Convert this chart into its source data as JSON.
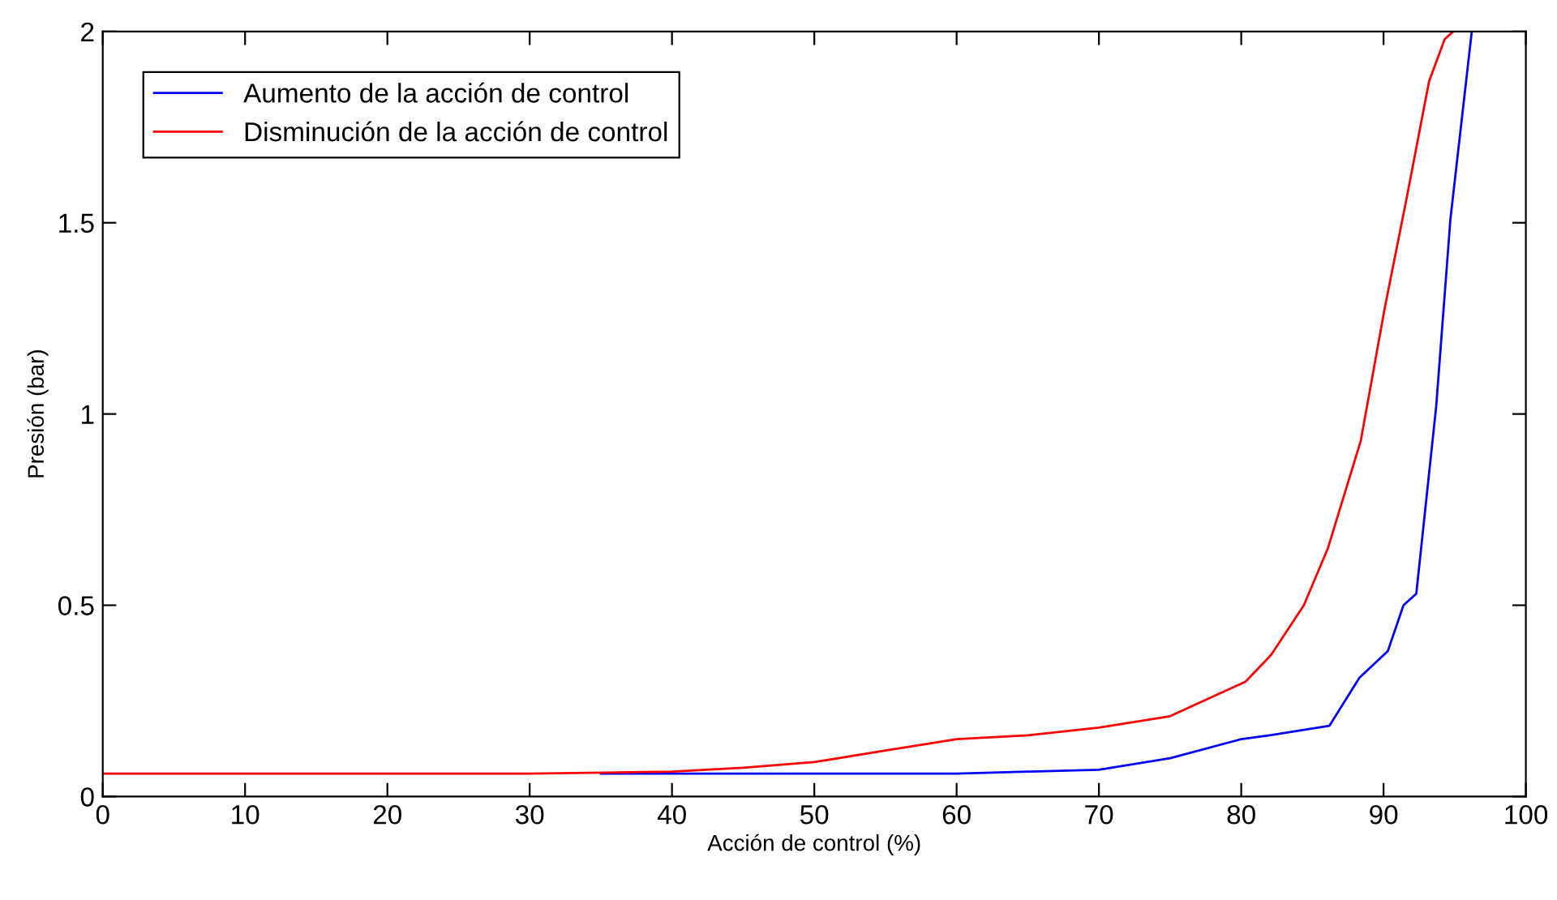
{
  "chart_data": {
    "type": "line",
    "xlabel": "Acción de control (%)",
    "ylabel": "Presión (bar)",
    "xlim": [
      0,
      100
    ],
    "ylim": [
      0,
      2
    ],
    "xticks": [
      0,
      10,
      20,
      30,
      40,
      50,
      60,
      70,
      80,
      90,
      100
    ],
    "yticks": [
      0,
      0.5,
      1,
      1.5,
      2
    ],
    "grid": false,
    "legend": "top left",
    "marker": "none",
    "line_style": "solid",
    "series": [
      {
        "name": "Aumento de la acción de control",
        "color": "#0000ff",
        "x": [
          35,
          40,
          50,
          60,
          65,
          70,
          75,
          80,
          82,
          86.2,
          88.3,
          90.3,
          91.4,
          92.3,
          93.7,
          94.7,
          96.2
        ],
        "values": [
          0.06,
          0.06,
          0.06,
          0.06,
          0.065,
          0.07,
          0.1,
          0.15,
          0.16,
          0.185,
          0.31,
          0.38,
          0.5,
          0.53,
          1.02,
          1.51,
          2.0
        ]
      },
      {
        "name": "Disminución de la acción de control",
        "color": "#ff0000",
        "x": [
          0,
          10,
          20,
          30,
          40,
          45,
          50,
          55,
          60,
          65,
          70,
          75,
          80.3,
          82.1,
          84.4,
          86.1,
          88.4,
          90.1,
          91.6,
          93.2,
          94.3,
          94.9
        ],
        "values": [
          0.06,
          0.06,
          0.06,
          0.06,
          0.065,
          0.075,
          0.09,
          0.12,
          0.15,
          0.16,
          0.18,
          0.21,
          0.3,
          0.37,
          0.5,
          0.65,
          0.93,
          1.28,
          1.56,
          1.87,
          1.98,
          2.0
        ]
      }
    ]
  }
}
